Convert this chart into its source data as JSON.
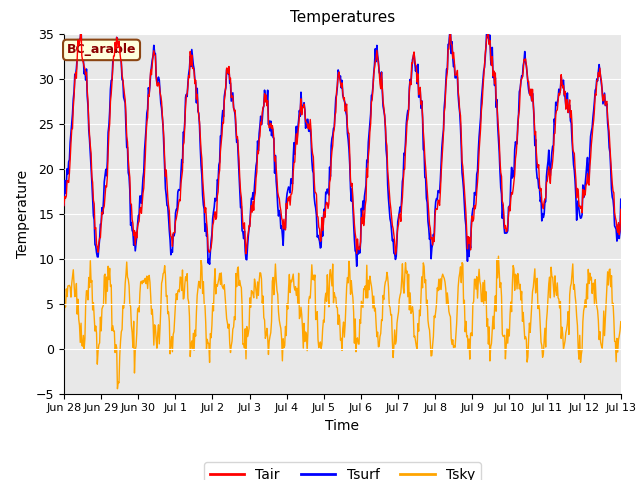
{
  "title": "Temperatures",
  "xlabel": "Time",
  "ylabel": "Temperature",
  "ylim": [
    -5,
    35
  ],
  "background_color": "#e8e8e8",
  "annotation_text": "BC_arable",
  "annotation_facecolor": "#ffffdd",
  "annotation_edgecolor": "#8B4513",
  "annotation_textcolor": "#8B0000",
  "tair_color": "red",
  "tsurf_color": "blue",
  "tsky_color": "orange",
  "yticks": [
    -5,
    0,
    5,
    10,
    15,
    20,
    25,
    30,
    35
  ],
  "xtick_labels": [
    "Jun 28",
    "Jun 29",
    "Jun 30",
    "Jul 1",
    "Jul 2",
    "Jul 3",
    "Jul 4",
    "Jul 5",
    "Jul 6",
    "Jul 7",
    "Jul 8",
    "Jul 9",
    "Jul 10",
    "Jul 11",
    "Jul 12",
    "Jul 13"
  ],
  "n_days": 15,
  "n_points": 720,
  "tair_mean": 22.0,
  "tair_amplitude": 9.0,
  "tsky_mean": 4.5,
  "tsky_amplitude": 3.5
}
